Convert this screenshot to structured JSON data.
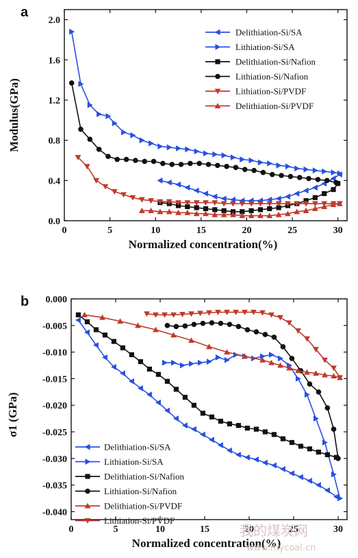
{
  "colors": {
    "sa": "#2850e0",
    "nafion": "#111111",
    "pvdf": "#c0392b",
    "axis": "#111111"
  },
  "watermark": {
    "text": "我的煤炭网",
    "url": "www.mycoal.cn"
  },
  "chart_data": [
    {
      "panel": "a",
      "type": "line",
      "title": "",
      "xlabel": "Normalized concentration(%)",
      "ylabel": "Modulus(GPa)",
      "xlim": [
        0,
        31
      ],
      "ylim": [
        0,
        2.1
      ],
      "xticks": [
        0,
        5,
        10,
        15,
        20,
        25,
        30
      ],
      "xtick_labels": [
        "0",
        "5",
        "10",
        "15",
        "20",
        "25",
        "30"
      ],
      "yticks": [
        0.0,
        0.4,
        0.8,
        1.2,
        1.6,
        2.0
      ],
      "ytick_labels": [
        "0.0",
        "0.4",
        "0.8",
        "1.2",
        "1.6",
        "2.0"
      ],
      "legend_position": "top-right",
      "series": [
        {
          "name": "Delithiation-Si/SA",
          "color": "#2850e0",
          "marker": "tri-left",
          "x": [
            10.5,
            11.5,
            12.5,
            13.5,
            14.5,
            15.5,
            16.5,
            17.5,
            18.5,
            19.5,
            20.5,
            21.5,
            22.5,
            23.5,
            24.5,
            25.5,
            26.5,
            27.5,
            28.5,
            29.5,
            30.2
          ],
          "y": [
            0.4,
            0.38,
            0.36,
            0.33,
            0.3,
            0.27,
            0.24,
            0.22,
            0.21,
            0.2,
            0.2,
            0.2,
            0.21,
            0.22,
            0.24,
            0.27,
            0.3,
            0.33,
            0.37,
            0.42,
            0.46
          ]
        },
        {
          "name": "Lithiation-Si/SA",
          "color": "#2850e0",
          "marker": "tri-right",
          "x": [
            0.8,
            1.8,
            2.8,
            3.8,
            4.8,
            5.5,
            6.5,
            7.5,
            8.5,
            9.5,
            10.5,
            11.5,
            12.5,
            13.5,
            14.5,
            15.5,
            16.5,
            17.5,
            18.5,
            19.5,
            20.5,
            21.5,
            22.5,
            23.5,
            24.5,
            25.5,
            26.5,
            27.5,
            28.5,
            29.5,
            30.2
          ],
          "y": [
            1.88,
            1.36,
            1.15,
            1.06,
            1.04,
            0.97,
            0.88,
            0.85,
            0.8,
            0.77,
            0.74,
            0.73,
            0.72,
            0.71,
            0.69,
            0.67,
            0.66,
            0.65,
            0.63,
            0.61,
            0.6,
            0.58,
            0.57,
            0.55,
            0.54,
            0.52,
            0.51,
            0.5,
            0.49,
            0.48,
            0.47
          ]
        },
        {
          "name": "Delithiation-Si/Nafion",
          "color": "#111111",
          "marker": "square",
          "x": [
            10.5,
            11.5,
            12.5,
            13.5,
            14.5,
            15.5,
            16.5,
            17.5,
            18.5,
            19.5,
            20.5,
            21.5,
            22.5,
            23.5,
            24.5,
            25.5,
            26.5,
            27.5,
            28.5,
            29.5,
            30.0
          ],
          "y": [
            0.18,
            0.17,
            0.15,
            0.14,
            0.13,
            0.12,
            0.11,
            0.1,
            0.09,
            0.09,
            0.1,
            0.11,
            0.12,
            0.13,
            0.15,
            0.17,
            0.2,
            0.23,
            0.27,
            0.31,
            0.37
          ]
        },
        {
          "name": "Lithiation-Si/Nafion",
          "color": "#111111",
          "marker": "circle",
          "x": [
            0.8,
            1.8,
            2.8,
            3.8,
            4.8,
            5.8,
            6.8,
            7.8,
            8.8,
            9.8,
            10.8,
            11.8,
            12.8,
            13.8,
            14.8,
            15.8,
            16.8,
            17.8,
            18.8,
            19.8,
            20.8,
            21.8,
            22.8,
            23.8,
            24.8,
            25.8,
            26.8,
            27.8,
            28.8,
            29.8
          ],
          "y": [
            1.37,
            0.91,
            0.81,
            0.71,
            0.64,
            0.61,
            0.61,
            0.6,
            0.59,
            0.59,
            0.57,
            0.56,
            0.56,
            0.57,
            0.57,
            0.56,
            0.55,
            0.54,
            0.53,
            0.51,
            0.5,
            0.48,
            0.46,
            0.45,
            0.44,
            0.43,
            0.42,
            0.41,
            0.4,
            0.38
          ]
        },
        {
          "name": "Lithiation-Si/PVDF",
          "color": "#c0392b",
          "marker": "tri-down",
          "x": [
            1.5,
            2.5,
            3.5,
            4.5,
            5.5,
            6.5,
            7.5,
            8.5,
            9.5,
            10.5,
            11.5,
            12.5,
            13.5,
            14.5,
            15.5,
            16.5,
            17.5,
            18.5,
            19.5,
            20.5,
            21.5,
            22.5,
            23.5,
            24.5,
            25.5,
            26.5,
            27.5,
            28.5,
            29.5,
            30.2
          ],
          "y": [
            0.63,
            0.54,
            0.4,
            0.34,
            0.29,
            0.26,
            0.23,
            0.21,
            0.2,
            0.19,
            0.19,
            0.18,
            0.18,
            0.18,
            0.18,
            0.18,
            0.17,
            0.17,
            0.17,
            0.17,
            0.17,
            0.17,
            0.17,
            0.17,
            0.17,
            0.17,
            0.17,
            0.17,
            0.17,
            0.17
          ]
        },
        {
          "name": "Delithiation-Si/PVDF",
          "color": "#c0392b",
          "marker": "tri-up",
          "x": [
            8.5,
            9.5,
            10.5,
            11.5,
            12.5,
            13.5,
            14.5,
            15.5,
            16.5,
            17.5,
            18.5,
            19.5,
            20.5,
            21.5,
            22.5,
            23.5,
            24.5,
            25.5,
            26.5,
            27.5,
            28.5,
            29.5,
            30.2
          ],
          "y": [
            0.1,
            0.1,
            0.09,
            0.09,
            0.08,
            0.08,
            0.07,
            0.07,
            0.06,
            0.06,
            0.06,
            0.05,
            0.05,
            0.05,
            0.05,
            0.06,
            0.07,
            0.09,
            0.1,
            0.12,
            0.14,
            0.16,
            0.17
          ]
        }
      ]
    },
    {
      "panel": "b",
      "type": "line",
      "title": "",
      "xlabel": "Normalized concentration(%)",
      "ylabel": "σ1 (GPa)",
      "xlim": [
        0,
        31
      ],
      "ylim": [
        -0.0415,
        0.0
      ],
      "xticks": [
        0,
        5,
        10,
        15,
        20,
        25,
        30
      ],
      "xtick_labels": [
        "0",
        "5",
        "10",
        "15",
        "20",
        "25",
        "30"
      ],
      "yticks": [
        0.0,
        -0.005,
        -0.01,
        -0.015,
        -0.02,
        -0.025,
        -0.03,
        -0.035,
        -0.04
      ],
      "ytick_labels": [
        "0.000",
        "-0.005",
        "-0.010",
        "-0.015",
        "-0.020",
        "-0.025",
        "-0.030",
        "-0.035",
        "-0.040"
      ],
      "legend_position": "bottom-left",
      "series": [
        {
          "name": "Delithiation-Si/SA",
          "color": "#2850e0",
          "marker": "tri-left",
          "x": [
            0.8,
            1.8,
            2.8,
            3.8,
            4.8,
            5.8,
            6.8,
            7.8,
            8.8,
            9.8,
            10.8,
            11.8,
            12.8,
            13.8,
            14.8,
            15.8,
            16.8,
            17.8,
            18.8,
            19.8,
            20.8,
            21.8,
            22.8,
            23.8,
            24.8,
            25.8,
            26.8,
            27.8,
            28.8,
            29.8
          ],
          "y": [
            -0.004,
            -0.0063,
            -0.0087,
            -0.011,
            -0.0128,
            -0.014,
            -0.0155,
            -0.0168,
            -0.018,
            -0.0195,
            -0.021,
            -0.0225,
            -0.0238,
            -0.0245,
            -0.0255,
            -0.0265,
            -0.0275,
            -0.0285,
            -0.0293,
            -0.0298,
            -0.0302,
            -0.0308,
            -0.0313,
            -0.032,
            -0.0328,
            -0.0335,
            -0.0342,
            -0.035,
            -0.036,
            -0.0372
          ]
        },
        {
          "name": "Lithiation-Si/SA",
          "color": "#2850e0",
          "marker": "tri-right",
          "x": [
            10.5,
            11.5,
            12.5,
            13.5,
            14.5,
            15.5,
            16.5,
            17.5,
            18.5,
            19.5,
            20.5,
            21.5,
            22.5,
            23.5,
            24.5,
            25.5,
            26.5,
            27.5,
            28.5,
            29.5,
            30.2
          ],
          "y": [
            -0.012,
            -0.012,
            -0.0125,
            -0.0122,
            -0.012,
            -0.0118,
            -0.011,
            -0.0115,
            -0.0105,
            -0.0108,
            -0.0112,
            -0.0108,
            -0.0105,
            -0.0112,
            -0.0125,
            -0.015,
            -0.018,
            -0.0225,
            -0.027,
            -0.033,
            -0.0375
          ]
        },
        {
          "name": "Delithiation-Si/Nafion",
          "color": "#111111",
          "marker": "square",
          "x": [
            0.8,
            1.8,
            2.8,
            3.8,
            4.8,
            5.8,
            6.8,
            7.8,
            8.8,
            9.8,
            10.8,
            11.8,
            12.8,
            13.8,
            14.8,
            15.8,
            16.8,
            17.8,
            18.8,
            19.8,
            20.8,
            21.8,
            22.8,
            23.8,
            24.8,
            25.8,
            26.8,
            27.8,
            28.8,
            29.8
          ],
          "y": [
            -0.003,
            -0.0043,
            -0.0058,
            -0.0068,
            -0.008,
            -0.0092,
            -0.0105,
            -0.0118,
            -0.0132,
            -0.0142,
            -0.0155,
            -0.017,
            -0.0185,
            -0.02,
            -0.0215,
            -0.0222,
            -0.023,
            -0.0235,
            -0.0238,
            -0.0243,
            -0.0245,
            -0.025,
            -0.0255,
            -0.0263,
            -0.027,
            -0.0277,
            -0.0282,
            -0.0288,
            -0.0293,
            -0.0298
          ]
        },
        {
          "name": "Lithiation-Si/Nafion",
          "color": "#111111",
          "marker": "circle",
          "x": [
            10.8,
            11.8,
            12.8,
            13.8,
            14.8,
            15.8,
            16.8,
            17.8,
            18.8,
            19.8,
            20.8,
            21.8,
            22.8,
            23.8,
            24.8,
            25.8,
            26.8,
            27.8,
            28.8,
            29.5,
            30.0
          ],
          "y": [
            -0.005,
            -0.0052,
            -0.0051,
            -0.0048,
            -0.0046,
            -0.0045,
            -0.0046,
            -0.0048,
            -0.0052,
            -0.0058,
            -0.0062,
            -0.0067,
            -0.0072,
            -0.009,
            -0.0112,
            -0.0135,
            -0.016,
            -0.0175,
            -0.0205,
            -0.0245,
            -0.03
          ]
        },
        {
          "name": "Delithiation-Si/PVDF",
          "color": "#c0392b",
          "marker": "tri-up",
          "x": [
            1.5,
            3.5,
            5.5,
            7.5,
            9.5,
            11.5,
            13.5,
            15.5,
            17.5,
            19.5,
            21.5,
            22.5,
            23.5,
            24.5,
            25.5,
            26.5,
            27.5,
            28.5,
            29.5,
            30.2
          ],
          "y": [
            -0.003,
            -0.0035,
            -0.0042,
            -0.005,
            -0.0058,
            -0.0068,
            -0.0078,
            -0.009,
            -0.01,
            -0.0108,
            -0.0115,
            -0.012,
            -0.0125,
            -0.013,
            -0.0135,
            -0.0138,
            -0.014,
            -0.0143,
            -0.0145,
            -0.0148
          ]
        },
        {
          "name": "Lithiation-Si/PVDF",
          "color": "#c0392b",
          "marker": "tri-down",
          "x": [
            8.5,
            9.5,
            10.5,
            11.5,
            12.5,
            13.5,
            14.5,
            15.5,
            16.5,
            17.5,
            18.5,
            19.5,
            20.5,
            21.5,
            22.5,
            23.5,
            24.5,
            25.5,
            26.5,
            27.5,
            28.5,
            29.5,
            30.2
          ],
          "y": [
            -0.0028,
            -0.003,
            -0.003,
            -0.003,
            -0.0029,
            -0.0028,
            -0.0027,
            -0.0026,
            -0.0025,
            -0.0025,
            -0.0025,
            -0.0025,
            -0.0025,
            -0.0026,
            -0.003,
            -0.0035,
            -0.0045,
            -0.006,
            -0.0075,
            -0.0095,
            -0.0115,
            -0.013,
            -0.0148
          ]
        }
      ]
    }
  ]
}
